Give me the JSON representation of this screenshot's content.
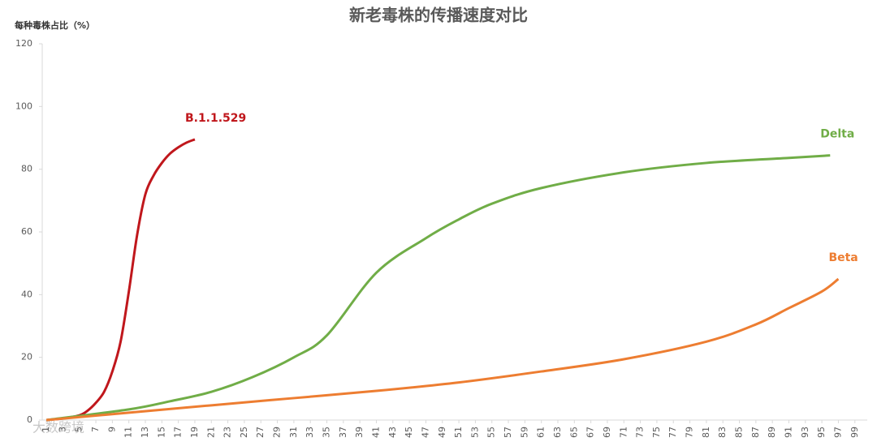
{
  "chart_data": {
    "type": "line",
    "title": "新老毒株的传播速度对比",
    "y_label": "每种毒株占比（%）",
    "watermark": "大数跨境",
    "xlim": [
      0.5,
      100.5
    ],
    "xticks": [
      1,
      3,
      5,
      7,
      9,
      11,
      13,
      15,
      17,
      19,
      21,
      23,
      25,
      27,
      29,
      31,
      33,
      35,
      37,
      39,
      41,
      43,
      45,
      47,
      49,
      51,
      53,
      55,
      57,
      59,
      61,
      63,
      65,
      67,
      69,
      71,
      73,
      75,
      77,
      79,
      81,
      83,
      85,
      87,
      89,
      91,
      93,
      95,
      97,
      99
    ],
    "ylim": [
      0,
      120
    ],
    "yticks": [
      0,
      20,
      40,
      60,
      80,
      100,
      120
    ],
    "series": [
      {
        "name": "B.1.1.529",
        "color": "#c0171c",
        "x": [
          1,
          3,
          5,
          6,
          7,
          8,
          9,
          10,
          11,
          12,
          13,
          14,
          15,
          16,
          17,
          18,
          19
        ],
        "values": [
          0,
          0.5,
          1.5,
          3,
          5.5,
          9,
          15.5,
          25,
          41,
          59,
          72,
          78,
          82,
          85,
          87,
          88.5,
          89.5
        ]
      },
      {
        "name": "Delta",
        "color": "#70ad47",
        "x": [
          1,
          11,
          16,
          21,
          26,
          31,
          35,
          41,
          47,
          51,
          55,
          61,
          71,
          81,
          91,
          96
        ],
        "values": [
          0,
          3.4,
          6,
          9,
          13.7,
          20,
          27,
          47,
          58,
          64,
          69,
          74,
          79,
          82,
          83.6,
          84.4
        ]
      },
      {
        "name": "Beta",
        "color": "#ed7d31",
        "x": [
          1,
          21,
          31,
          41,
          51,
          61,
          71,
          81,
          87,
          91,
          95,
          97
        ],
        "values": [
          0,
          4.7,
          7,
          9.3,
          12,
          15.5,
          19.4,
          25,
          30.5,
          35.7,
          41,
          45
        ]
      }
    ]
  }
}
